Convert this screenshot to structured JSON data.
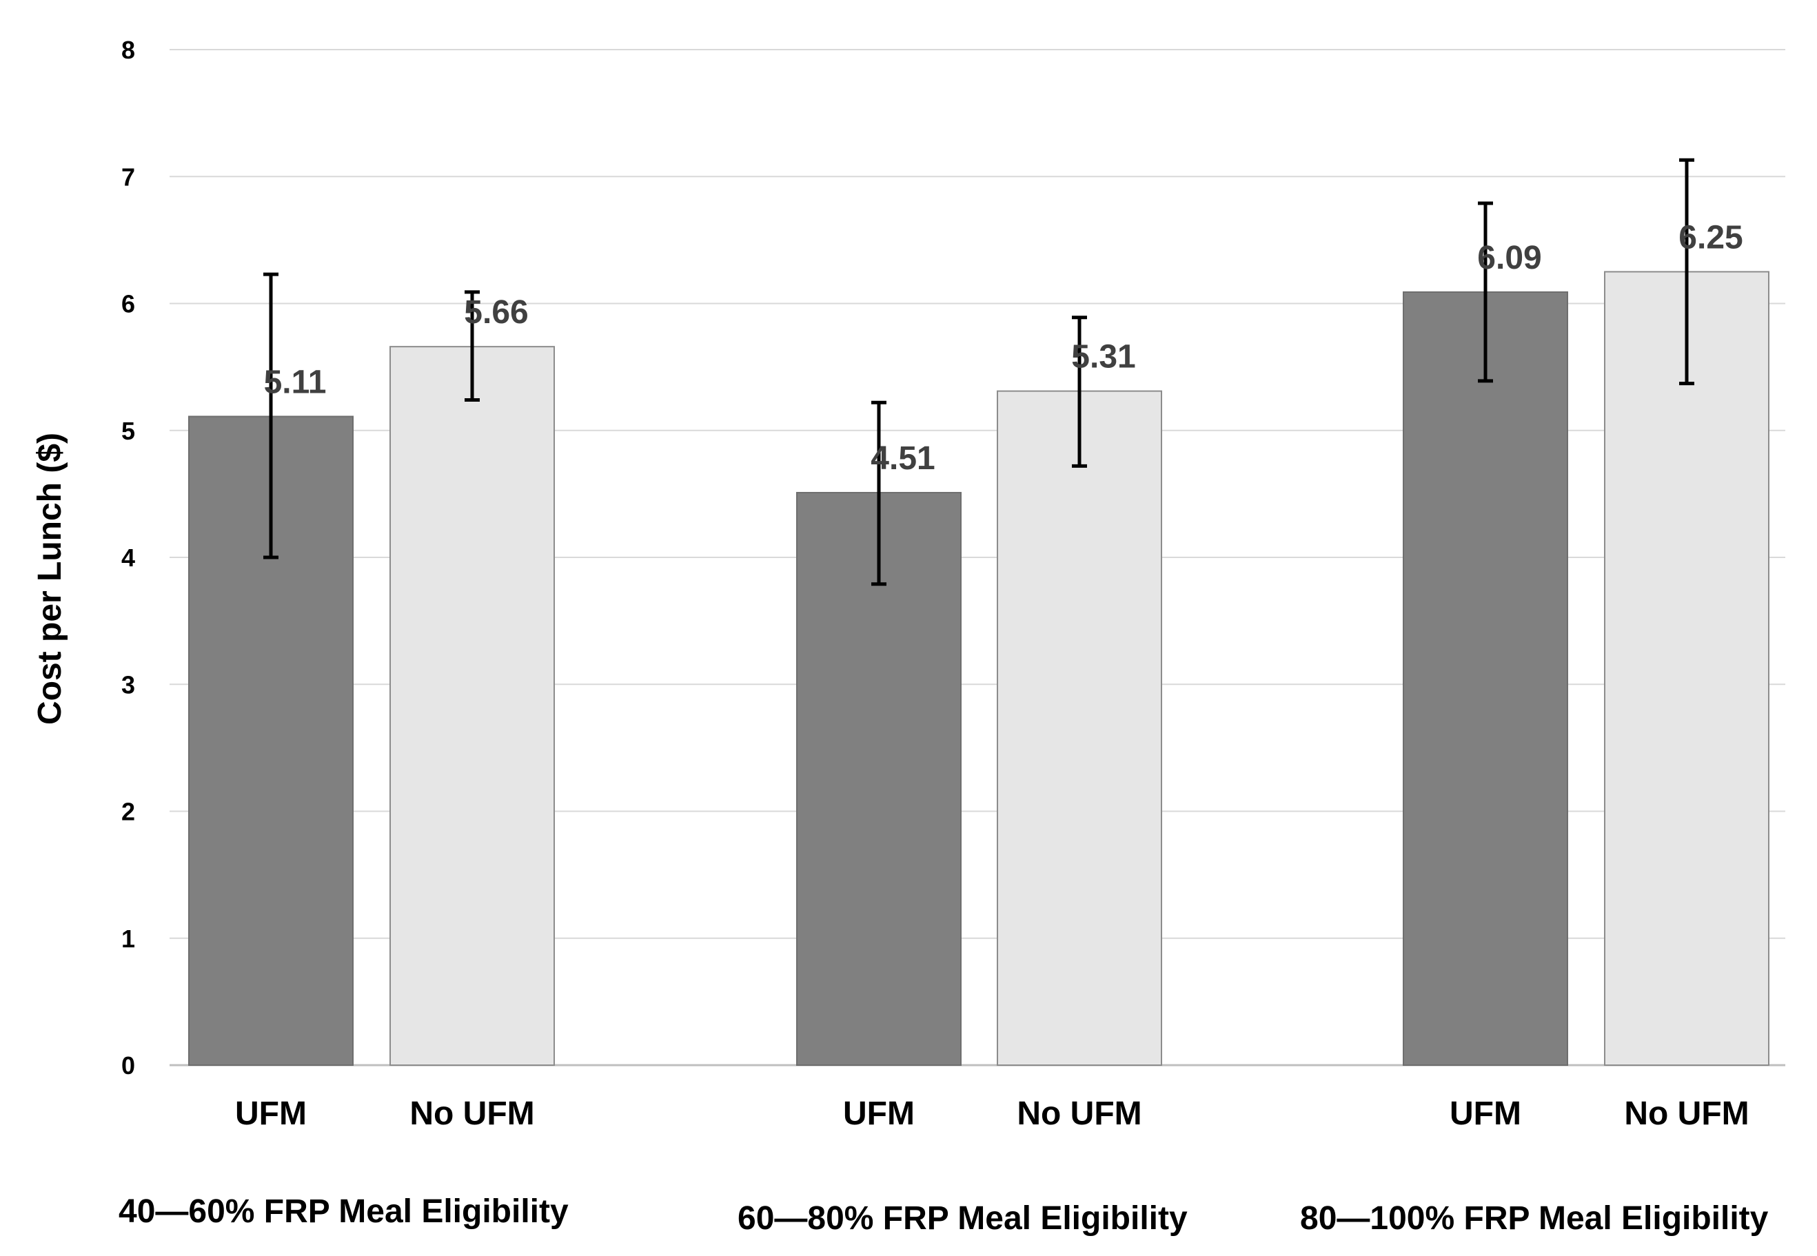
{
  "chart_data": {
    "type": "bar",
    "title": "",
    "xlabel": "",
    "ylabel": "Cost per Lunch ($)",
    "ylim": [
      0,
      8
    ],
    "yticks": [
      "0",
      "1",
      "2",
      "3",
      "4",
      "5",
      "6",
      "7",
      "8"
    ],
    "grid": true,
    "groups": [
      {
        "name": "40—60% FRP Meal Eligibility",
        "bars": [
          {
            "label": "UFM",
            "value": 5.11,
            "value_text": "5.11",
            "err_low": 4.0,
            "err_high": 6.23
          },
          {
            "label": "No UFM",
            "value": 5.66,
            "value_text": "5.66",
            "err_low": 5.24,
            "err_high": 6.09
          }
        ]
      },
      {
        "name": "60—80% FRP Meal Eligibility",
        "bars": [
          {
            "label": "UFM",
            "value": 4.51,
            "value_text": "4.51",
            "err_low": 3.79,
            "err_high": 5.22
          },
          {
            "label": "No UFM",
            "value": 5.31,
            "value_text": "5.31",
            "err_low": 4.72,
            "err_high": 5.89
          }
        ]
      },
      {
        "name": "80—100% FRP Meal Eligibility",
        "bars": [
          {
            "label": "UFM",
            "value": 6.09,
            "value_text": "6.09",
            "err_low": 5.39,
            "err_high": 6.79
          },
          {
            "label": "No UFM",
            "value": 6.25,
            "value_text": "6.25",
            "err_low": 5.37,
            "err_high": 7.13
          }
        ]
      }
    ],
    "colors": {
      "UFM": "#808080",
      "No UFM": "#e6e6e6",
      "grid": "#d9d9d9",
      "error_bar": "#000000"
    }
  }
}
